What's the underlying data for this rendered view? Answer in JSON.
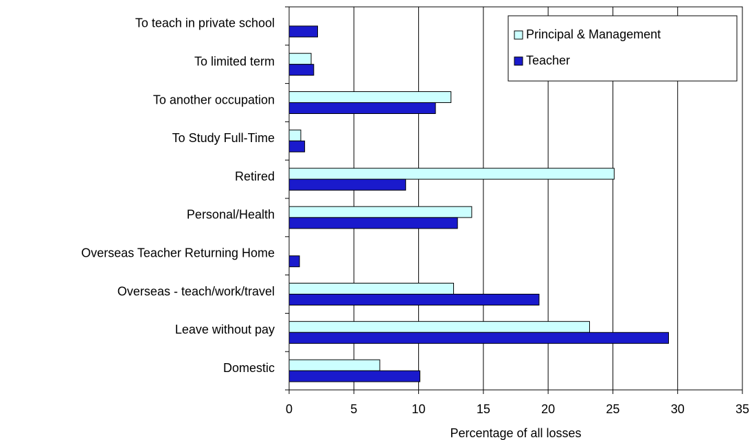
{
  "chart_data": {
    "type": "hbar",
    "xlabel": "Percentage of all losses",
    "categories": [
      "To teach in private school",
      "To limited term",
      "To another occupation",
      "To Study Full-Time",
      "Retired",
      "Personal/Health",
      "Overseas Teacher Returning Home",
      "Overseas - teach/work/travel",
      "Leave without pay",
      "Domestic"
    ],
    "series": [
      {
        "name": "Principal & Management",
        "color": "#ccffff",
        "values": [
          null,
          1.7,
          12.5,
          0.9,
          25.1,
          14.1,
          null,
          12.7,
          23.2,
          7.0
        ]
      },
      {
        "name": "Teacher",
        "color": "#1a1acc",
        "values": [
          2.2,
          1.9,
          11.3,
          1.2,
          9.0,
          13.0,
          0.8,
          19.3,
          29.3,
          10.1
        ]
      }
    ],
    "xlim": [
      0,
      35
    ],
    "xticks": [
      0,
      5,
      10,
      15,
      20,
      25,
      30,
      35
    ],
    "grid": true,
    "legend": "upper right"
  }
}
